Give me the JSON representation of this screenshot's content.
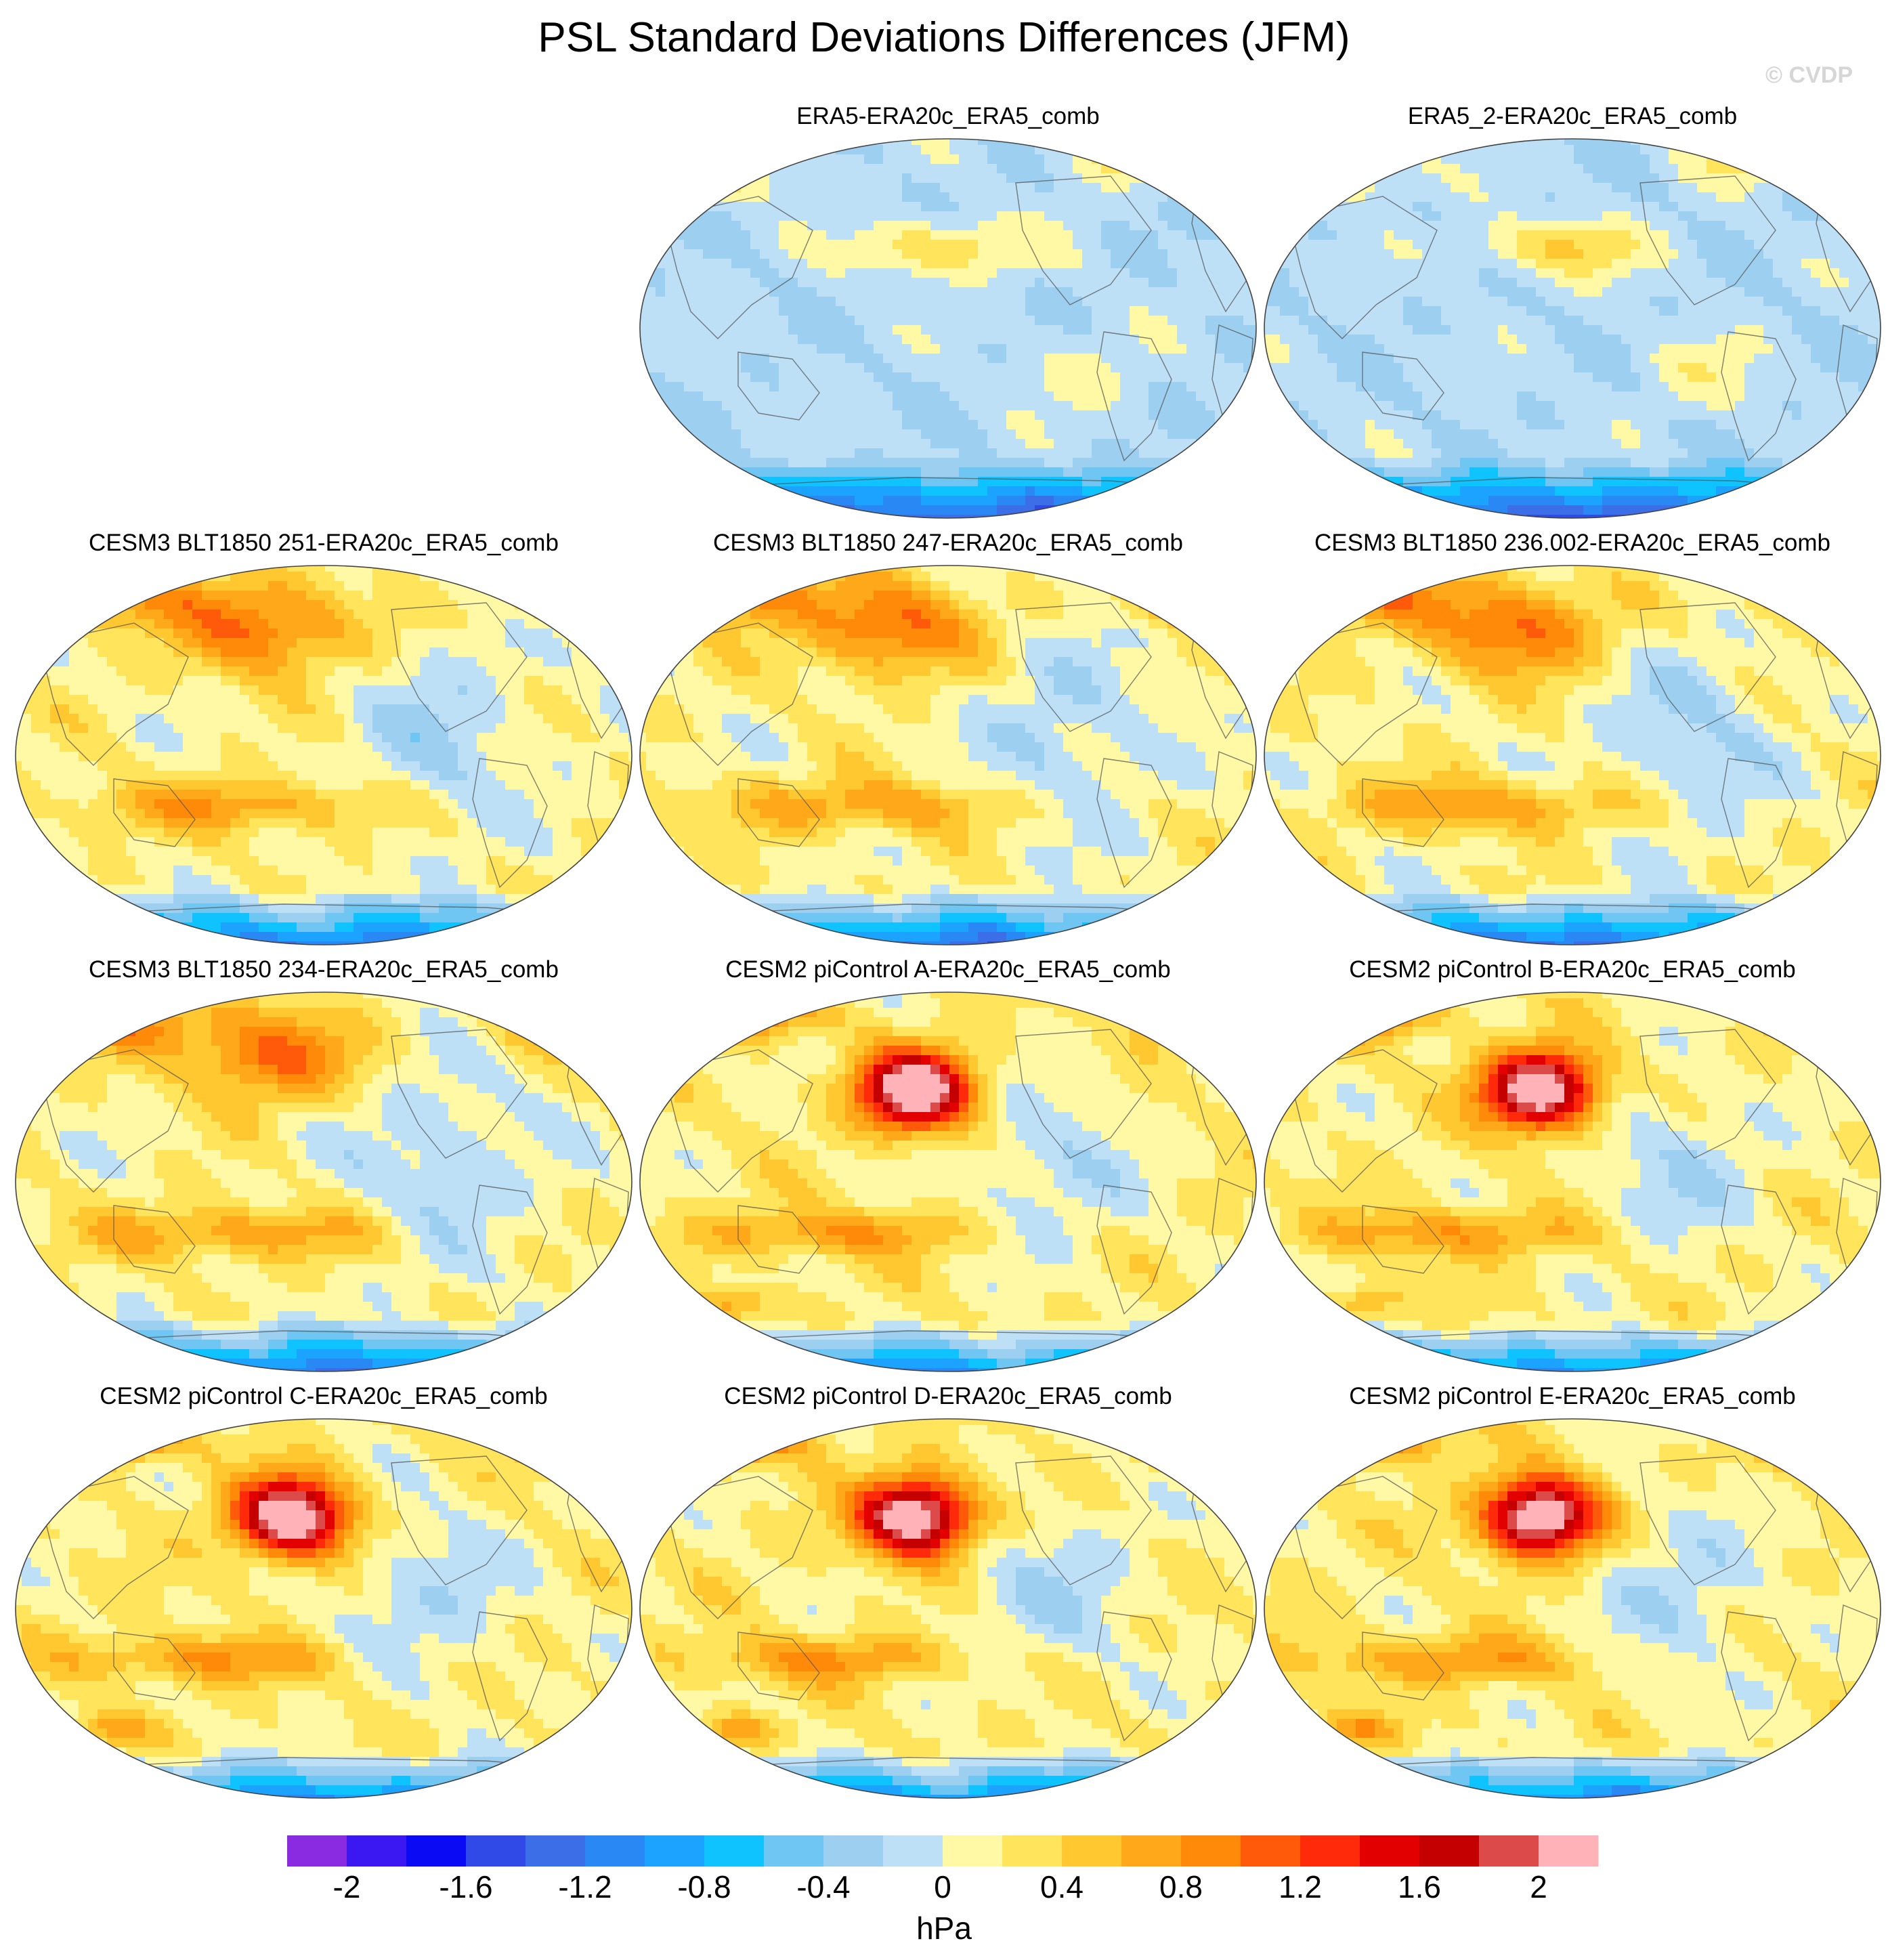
{
  "title": "PSL Standard Deviations Differences (JFM)",
  "watermark": "© CVDP",
  "colorbar": {
    "units": "hPa",
    "labels": [
      "-2",
      "-1.6",
      "-1.2",
      "-0.8",
      "-0.4",
      "0",
      "0.4",
      "0.8",
      "1.2",
      "1.6",
      "2"
    ],
    "colors": [
      "#8a2be2",
      "#3b17f2",
      "#0a0af5",
      "#2f4ae6",
      "#3c6ee8",
      "#2a88f5",
      "#1ca2ff",
      "#0ec3ff",
      "#6fc6f2",
      "#9ccff0",
      "#bde0f6",
      "#fff9a5",
      "#ffe45c",
      "#ffc830",
      "#ffa91a",
      "#ff8a0a",
      "#ff5a0a",
      "#ff2a0a",
      "#e30000",
      "#c40000",
      "#dd4a4a",
      "#ffb3b8"
    ]
  },
  "chart_data": {
    "type": "heatmap",
    "projection": "Robinson (Pacific-centred)",
    "value_range": [
      -2,
      2
    ],
    "contour_interval": 0.2,
    "units": "hPa",
    "panels": [
      {
        "title": "ERA5-ERA20c_ERA5_comb",
        "pattern": "era"
      },
      {
        "title": "ERA5_2-ERA20c_ERA5_comb",
        "pattern": "era"
      },
      {
        "title": "CESM3 BLT1850 251-ERA20c_ERA5_comb",
        "pattern": "model"
      },
      {
        "title": "CESM3 BLT1850 247-ERA20c_ERA5_comb",
        "pattern": "model"
      },
      {
        "title": "CESM3 BLT1850 236.002-ERA20c_ERA5_comb",
        "pattern": "model"
      },
      {
        "title": "CESM3 BLT1850 234-ERA20c_ERA5_comb",
        "pattern": "model"
      },
      {
        "title": "CESM2 piControl A-ERA20c_ERA5_comb",
        "pattern": "strong"
      },
      {
        "title": "CESM2 piControl B-ERA20c_ERA5_comb",
        "pattern": "strong"
      },
      {
        "title": "CESM2 piControl C-ERA20c_ERA5_comb",
        "pattern": "strong"
      },
      {
        "title": "CESM2 piControl D-ERA20c_ERA5_comb",
        "pattern": "strong"
      },
      {
        "title": "CESM2 piControl E-ERA20c_ERA5_comb",
        "pattern": "strong"
      }
    ]
  }
}
